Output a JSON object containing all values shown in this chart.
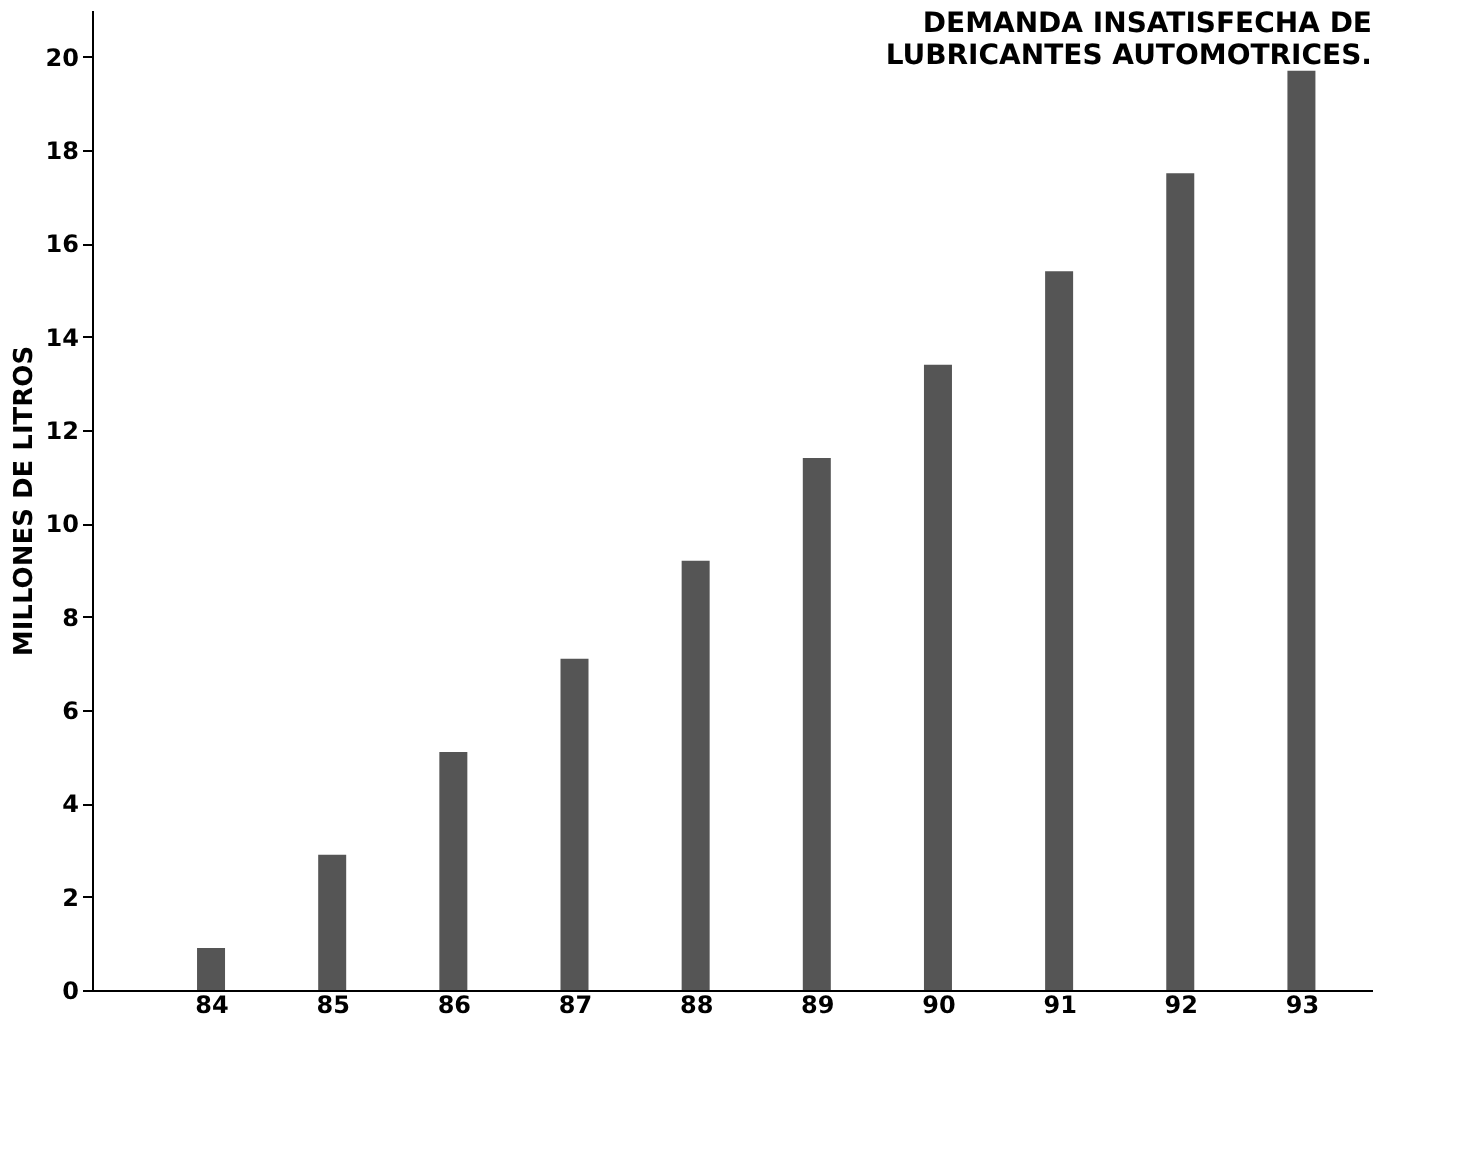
{
  "chart_data": {
    "type": "bar",
    "title": [
      "DEMANDA INSATISFECHA DE",
      "LUBRICANTES AUTOMOTRICES."
    ],
    "ylabel": "MILLONES   DE   LITROS",
    "categories": [
      "84",
      "85",
      "86",
      "87",
      "88",
      "89",
      "90",
      "91",
      "92",
      "93"
    ],
    "values": [
      0.9,
      2.9,
      5.1,
      7.1,
      9.2,
      11.4,
      13.4,
      15.4,
      17.5,
      19.7
    ],
    "color": "#555555",
    "ylim": [
      0,
      21
    ],
    "yticks": [
      0,
      2,
      4,
      6,
      8,
      10,
      12,
      14,
      16,
      18,
      20
    ],
    "grid": false
  }
}
